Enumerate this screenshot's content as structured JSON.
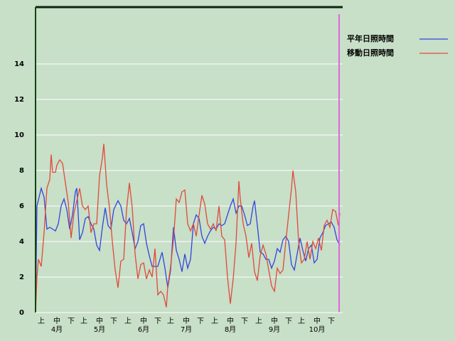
{
  "chart_data": {
    "type": "line",
    "xlim": [
      0,
      214
    ],
    "ylim": [
      0,
      17.2
    ],
    "yticks": [
      0,
      2,
      4,
      6,
      8,
      10,
      12,
      14
    ],
    "grid": true,
    "legend": "upper-right",
    "xticks": [
      {
        "value": 4,
        "label": "上"
      },
      {
        "value": 15,
        "label": "中"
      },
      {
        "value": 25,
        "label": "下"
      },
      {
        "value": 34,
        "label": "上"
      },
      {
        "value": 45,
        "label": "中"
      },
      {
        "value": 55,
        "label": "下"
      },
      {
        "value": 65,
        "label": "上"
      },
      {
        "value": 76,
        "label": "中"
      },
      {
        "value": 86,
        "label": "下"
      },
      {
        "value": 95,
        "label": "上"
      },
      {
        "value": 106,
        "label": "中"
      },
      {
        "value": 116,
        "label": "下"
      },
      {
        "value": 126,
        "label": "上"
      },
      {
        "value": 137,
        "label": "中"
      },
      {
        "value": 147,
        "label": "下"
      },
      {
        "value": 157,
        "label": "上"
      },
      {
        "value": 168,
        "label": "中"
      },
      {
        "value": 178,
        "label": "下"
      },
      {
        "value": 187,
        "label": "上"
      },
      {
        "value": 198,
        "label": "中"
      },
      {
        "value": 208,
        "label": "下"
      }
    ],
    "month_labels": [
      {
        "value": 15,
        "label": "4月"
      },
      {
        "value": 45,
        "label": "5月"
      },
      {
        "value": 76,
        "label": "6月"
      },
      {
        "value": 106,
        "label": "7月"
      },
      {
        "value": 137,
        "label": "8月"
      },
      {
        "value": 168,
        "label": "9月"
      },
      {
        "value": 198,
        "label": "10月"
      }
    ],
    "series": [
      {
        "name": "平年日照時間",
        "color": "#3344dd",
        "x": [
          0,
          1,
          4,
          6,
          8,
          10,
          12,
          14,
          16,
          18,
          20,
          22,
          24,
          26,
          28,
          29,
          31,
          33,
          35,
          37,
          39,
          41,
          43,
          45,
          47,
          49,
          51,
          53,
          55,
          58,
          60,
          62,
          64,
          66,
          68,
          70,
          72,
          74,
          76,
          78,
          80,
          82,
          84,
          86,
          89,
          91,
          93,
          95,
          97,
          99,
          101,
          103,
          105,
          107,
          109,
          111,
          113,
          115,
          117,
          119,
          121,
          123,
          125,
          127,
          129,
          131,
          133,
          135,
          137,
          139,
          141,
          143,
          145,
          147,
          149,
          151,
          153,
          154,
          156,
          158,
          160,
          162,
          164,
          166,
          168,
          170,
          172,
          174,
          176,
          178,
          180,
          182,
          184,
          186,
          188,
          190,
          192,
          194,
          196,
          198,
          200,
          202,
          204,
          206,
          208,
          210,
          212,
          214
        ],
        "values": [
          0,
          6.0,
          7.0,
          6.5,
          4.7,
          4.8,
          4.7,
          4.6,
          5.0,
          6.0,
          6.4,
          5.8,
          4.7,
          5.5,
          6.8,
          7.0,
          4.1,
          4.5,
          5.3,
          5.4,
          5.0,
          4.7,
          3.8,
          3.5,
          4.8,
          5.9,
          4.9,
          4.7,
          5.8,
          6.3,
          6.0,
          5.2,
          5.0,
          5.3,
          4.5,
          3.6,
          4.0,
          4.9,
          5.0,
          3.9,
          3.2,
          2.6,
          2.6,
          2.6,
          3.4,
          2.5,
          1.4,
          2.4,
          4.8,
          3.5,
          3.0,
          2.3,
          3.3,
          2.5,
          3.0,
          5.0,
          5.5,
          5.3,
          4.3,
          3.9,
          4.3,
          4.6,
          4.8,
          4.7,
          5.0,
          4.9,
          5.0,
          5.5,
          6.0,
          6.4,
          5.6,
          6.0,
          6.0,
          5.5,
          4.9,
          5.0,
          6.0,
          6.3,
          4.9,
          3.4,
          3.3,
          3.0,
          3.0,
          2.5,
          2.9,
          3.6,
          3.4,
          4.1,
          4.3,
          4.0,
          2.7,
          2.4,
          3.3,
          4.2,
          3.5,
          2.9,
          3.6,
          3.8,
          2.8,
          3.0,
          4.2,
          4.5,
          4.9,
          5.0,
          5.1,
          4.8,
          4.1,
          3.8
        ]
      },
      {
        "name": "移動日照時間",
        "color": "#e04a3a",
        "x": [
          0,
          1,
          2,
          4,
          6,
          8,
          10,
          11,
          12,
          14,
          15,
          17,
          19,
          21,
          23,
          25,
          27,
          29,
          31,
          33,
          35,
          37,
          39,
          41,
          43,
          45,
          47,
          48,
          50,
          52,
          54,
          56,
          58,
          60,
          62,
          64,
          66,
          68,
          70,
          72,
          74,
          76,
          78,
          80,
          82,
          84,
          86,
          88,
          90,
          92,
          93,
          95,
          97,
          99,
          101,
          103,
          105,
          107,
          109,
          111,
          113,
          115,
          117,
          119,
          121,
          123,
          125,
          127,
          129,
          131,
          133,
          135,
          137,
          139,
          141,
          143,
          144,
          146,
          148,
          150,
          152,
          154,
          156,
          158,
          160,
          162,
          164,
          166,
          168,
          170,
          172,
          174,
          176,
          178,
          180,
          181,
          183,
          185,
          187,
          189,
          191,
          193,
          195,
          197,
          199,
          201,
          203,
          205,
          207,
          209,
          211,
          213,
          214
        ],
        "values": [
          0,
          2.0,
          3.0,
          2.6,
          4.5,
          7.0,
          7.5,
          8.9,
          7.9,
          7.9,
          8.3,
          8.6,
          8.4,
          7.3,
          6.2,
          4.2,
          5.6,
          6.3,
          7.0,
          6.0,
          5.8,
          6.0,
          4.5,
          5.0,
          5.0,
          7.7,
          8.7,
          9.5,
          7.2,
          5.9,
          4.0,
          2.4,
          1.4,
          2.9,
          3.0,
          5.8,
          7.3,
          5.9,
          3.3,
          1.9,
          2.7,
          2.8,
          1.9,
          2.4,
          2.0,
          3.6,
          1.0,
          1.2,
          1.0,
          0.3,
          1.5,
          2.6,
          4.1,
          6.4,
          6.2,
          6.8,
          6.9,
          5.0,
          4.6,
          5.0,
          4.3,
          5.5,
          6.6,
          6.1,
          5.0,
          4.7,
          5.0,
          4.6,
          6.0,
          4.3,
          4.1,
          2.0,
          0.5,
          1.9,
          3.9,
          7.4,
          6.4,
          5.0,
          4.3,
          3.1,
          3.9,
          2.3,
          1.8,
          3.2,
          3.8,
          3.3,
          2.4,
          1.5,
          1.2,
          2.5,
          2.2,
          2.4,
          4.0,
          5.5,
          7.0,
          8.0,
          6.8,
          4.0,
          2.8,
          3.0,
          4.0,
          3.0,
          4.0,
          3.6,
          4.2,
          3.5,
          4.9,
          5.2,
          4.8,
          5.8,
          5.7,
          4.9,
          5.6
        ]
      }
    ]
  }
}
